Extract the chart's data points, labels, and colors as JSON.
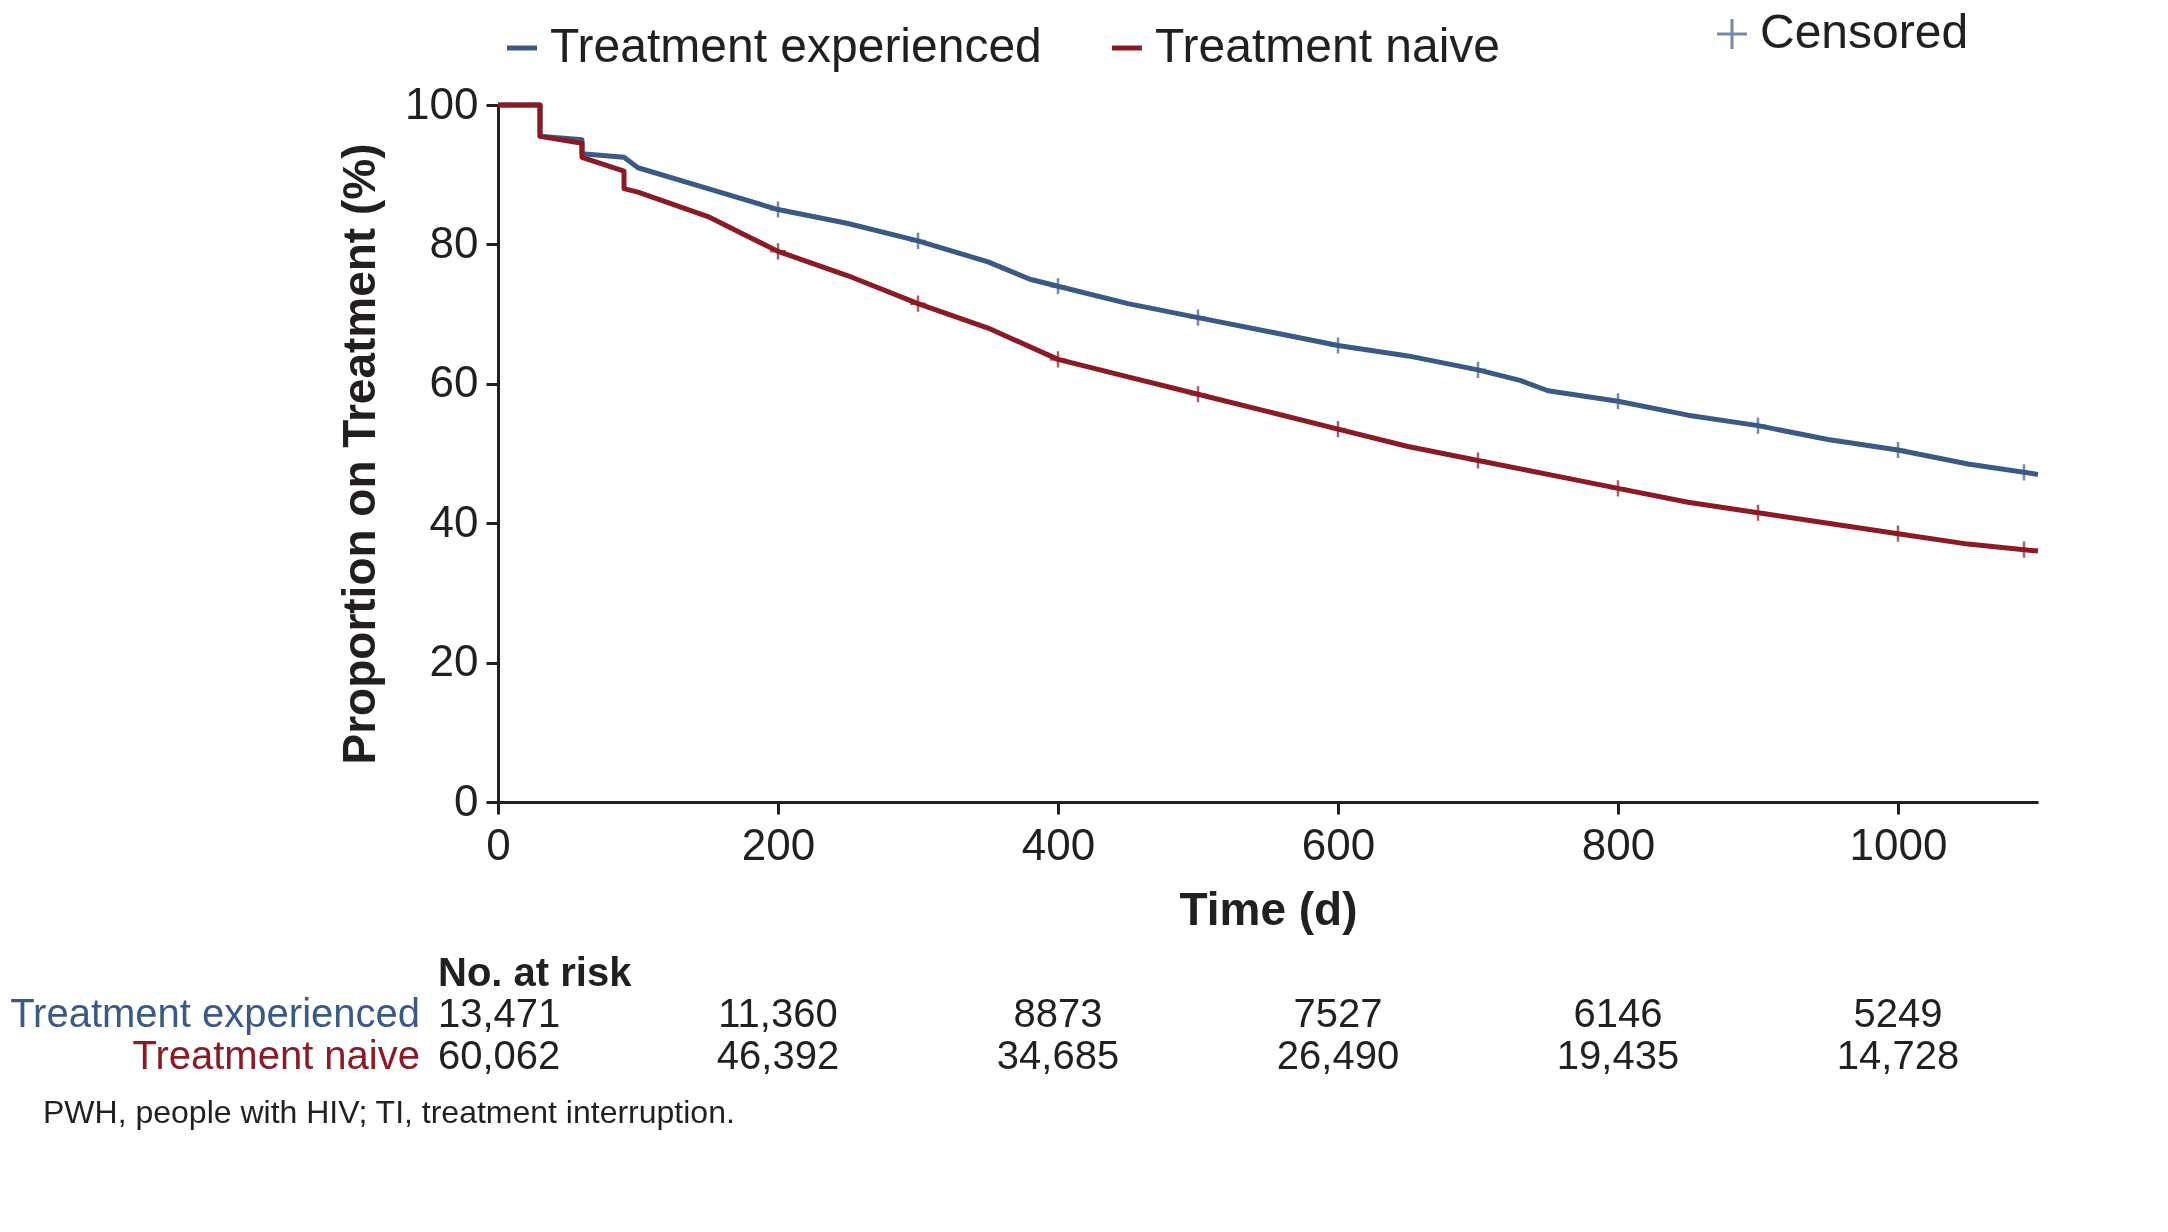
{
  "chart_data": {
    "type": "line",
    "xlabel": "Time (d)",
    "ylabel": "Proportion on Treatment (%)",
    "xlim": [
      0,
      1100
    ],
    "xticks": [
      0,
      200,
      400,
      600,
      800,
      1000
    ],
    "ylim": [
      0,
      100
    ],
    "yticks": [
      0,
      20,
      40,
      60,
      80,
      100
    ],
    "grid": false,
    "legend": "top",
    "line_style": "solid",
    "series": [
      {
        "name": "Treatment experienced",
        "color": "#3a5a85",
        "x": [
          0,
          30,
          30,
          60,
          60,
          90,
          100,
          150,
          200,
          250,
          300,
          350,
          380,
          400,
          450,
          500,
          550,
          600,
          650,
          700,
          730,
          750,
          800,
          850,
          900,
          950,
          1000,
          1050,
          1100
        ],
        "values": [
          100,
          100,
          95.5,
          95,
          93,
          92.5,
          91,
          88,
          85,
          83,
          80.5,
          77.5,
          75,
          74,
          71.5,
          69.5,
          67.5,
          65.5,
          64,
          62,
          60.5,
          59,
          57.5,
          55.5,
          54,
          52,
          50.5,
          48.5,
          47
        ]
      },
      {
        "name": "Treatment naive",
        "color": "#8b1a24",
        "x": [
          0,
          30,
          30,
          60,
          60,
          90,
          90,
          100,
          150,
          180,
          200,
          250,
          300,
          350,
          400,
          450,
          500,
          550,
          600,
          650,
          700,
          750,
          800,
          850,
          900,
          950,
          1000,
          1050,
          1100
        ],
        "values": [
          100,
          100,
          95.5,
          94.5,
          92.5,
          90.5,
          88,
          87.5,
          84,
          81,
          79,
          75.5,
          71.5,
          68,
          63.5,
          61,
          58.5,
          56,
          53.5,
          51,
          49,
          47,
          45,
          43,
          41.5,
          40,
          38.5,
          37,
          36
        ]
      },
      {
        "name": "Censored",
        "type": "scatter",
        "marker": "cross",
        "color": "#3a5a85",
        "colors": [
          "#3a5a85",
          "#3a5a85",
          "#3a5a85",
          "#3a5a85",
          "#3a5a85",
          "#3a5a85",
          "#3a5a85",
          "#3a5a85",
          "#3a5a85",
          "#3a5a85",
          "#8b1a24",
          "#8b1a24",
          "#8b1a24",
          "#8b1a24",
          "#8b1a24",
          "#8b1a24",
          "#8b1a24",
          "#8b1a24",
          "#8b1a24",
          "#8b1a24"
        ],
        "x": [
          200,
          300,
          400,
          500,
          600,
          700,
          800,
          900,
          1000,
          1090,
          200,
          300,
          400,
          500,
          600,
          700,
          800,
          900,
          1000,
          1090
        ],
        "values": [
          85,
          80.5,
          74,
          69.5,
          65.5,
          62,
          57.5,
          54,
          50.5,
          47.3,
          79,
          71.5,
          63.5,
          58.5,
          53.5,
          49,
          45,
          41.5,
          38.5,
          36.2
        ]
      }
    ],
    "annotations": [
      "No. at risk",
      "Treatment experienced",
      "13,471",
      "11,360",
      "8873",
      "7527",
      "6146",
      "5249",
      "Treatment naive",
      "60,062",
      "46,392",
      "34,685",
      "26,490",
      "19,435",
      "14,728",
      "PWH, people with HIV; TI, treatment interruption."
    ]
  }
}
